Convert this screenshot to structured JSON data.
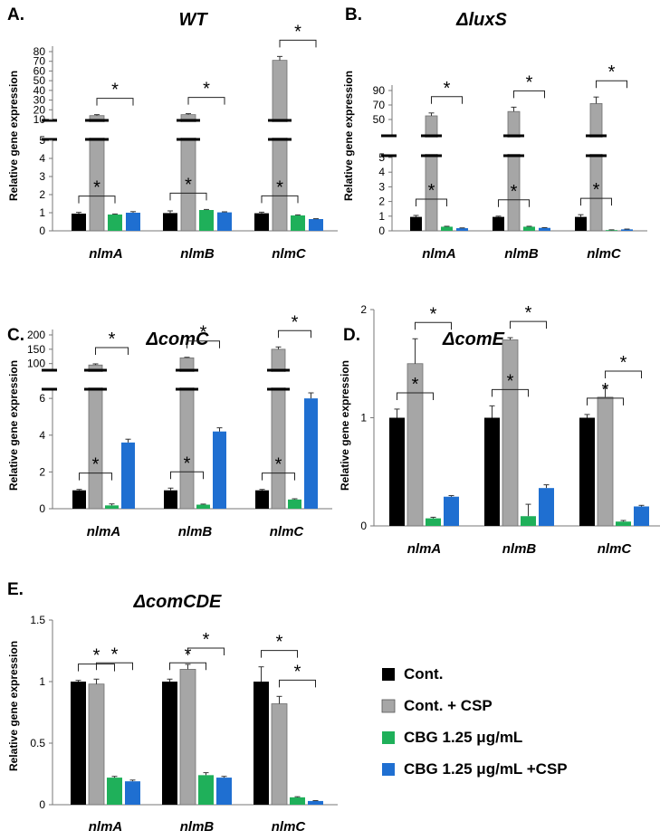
{
  "colors": {
    "cont": "#000000",
    "cont_csp": "#a6a6a6",
    "cbg": "#1fb05a",
    "cbg_csp": "#1f6fd1"
  },
  "legend": {
    "items": [
      {
        "label": "Cont.",
        "color": "#000000"
      },
      {
        "label": "Cont. + CSP",
        "color": "#a6a6a6"
      },
      {
        "label": "CBG 1.25 μg/mL",
        "color": "#1fb05a"
      },
      {
        "label": "CBG 1.25 μg/mL +CSP",
        "color": "#1f6fd1"
      }
    ]
  },
  "chart_data": [
    {
      "id": "A",
      "panel_label": "A.",
      "type": "bar",
      "title": "WT",
      "ylabel": "Relative gene expression",
      "broken_axis": true,
      "categories": [
        "nlmA",
        "nlmB",
        "nlmC"
      ],
      "series": [
        {
          "name": "Cont.",
          "values": [
            0.95,
            0.98,
            0.97
          ],
          "errors": [
            0.07,
            0.12,
            0.06
          ]
        },
        {
          "name": "Cont. + CSP",
          "values": [
            14,
            15,
            71
          ],
          "errors": [
            1.0,
            1.0,
            4.0
          ]
        },
        {
          "name": "CBG 1.25 μg/mL",
          "values": [
            0.9,
            1.15,
            0.85
          ],
          "errors": [
            0.03,
            0.03,
            0.03
          ]
        },
        {
          "name": "CBG 1.25 μg/mL +CSP",
          "values": [
            1.0,
            1.02,
            0.65
          ],
          "errors": [
            0.06,
            0.03,
            0.02
          ]
        }
      ],
      "lower_ticks": [
        "0",
        "1",
        "2",
        "3",
        "4",
        "5"
      ],
      "upper_ticks": [
        "10",
        "20",
        "30",
        "40",
        "50",
        "60",
        "70",
        "80"
      ],
      "significance": "*"
    },
    {
      "id": "B",
      "panel_label": "B.",
      "type": "bar",
      "title": "ΔluxS",
      "ylabel": "Relative gene expression",
      "broken_axis": true,
      "categories": [
        "nlmA",
        "nlmB",
        "nlmC"
      ],
      "series": [
        {
          "name": "Cont.",
          "values": [
            0.95,
            0.95,
            0.95
          ],
          "errors": [
            0.1,
            0.05,
            0.15
          ]
        },
        {
          "name": "Cont. + CSP",
          "values": [
            55,
            61,
            72
          ],
          "errors": [
            4,
            6,
            9
          ]
        },
        {
          "name": "CBG 1.25 μg/mL",
          "values": [
            0.28,
            0.28,
            0.05
          ],
          "errors": [
            0.03,
            0.03,
            0.02
          ]
        },
        {
          "name": "CBG 1.25 μg/mL +CSP",
          "values": [
            0.18,
            0.2,
            0.1
          ],
          "errors": [
            0.02,
            0.02,
            0.02
          ]
        }
      ],
      "lower_ticks": [
        "0",
        "1",
        "2",
        "3",
        "4",
        "5"
      ],
      "upper_ticks": [
        "50",
        "70",
        "90"
      ],
      "significance": "*"
    },
    {
      "id": "C",
      "panel_label": "C.",
      "type": "bar",
      "title": "ΔcomC",
      "ylabel": "Relative gene expression",
      "broken_axis": true,
      "categories": [
        "nlmA",
        "nlmB",
        "nlmC"
      ],
      "series": [
        {
          "name": "Cont.",
          "values": [
            1.0,
            1.0,
            1.0
          ],
          "errors": [
            0.05,
            0.12,
            0.05
          ]
        },
        {
          "name": "Cont. + CSP",
          "values": [
            95,
            120,
            150
          ],
          "errors": [
            4,
            2,
            8
          ]
        },
        {
          "name": "CBG 1.25 μg/mL",
          "values": [
            0.18,
            0.22,
            0.5
          ],
          "errors": [
            0.08,
            0.03,
            0.04
          ]
        },
        {
          "name": "CBG 1.25 μg/mL +CSP",
          "values": [
            3.6,
            4.2,
            6.0
          ],
          "errors": [
            0.18,
            0.2,
            0.3
          ]
        }
      ],
      "lower_ticks": [
        "0",
        "2",
        "4",
        "6"
      ],
      "upper_ticks": [
        "100",
        "150",
        "200"
      ],
      "significance": "*"
    },
    {
      "id": "D",
      "panel_label": "D.",
      "type": "bar",
      "title": "ΔcomE",
      "ylabel": "Relative gene expression",
      "broken_axis": false,
      "categories": [
        "nlmA",
        "nlmB",
        "nlmC"
      ],
      "series": [
        {
          "name": "Cont.",
          "values": [
            1.0,
            1.0,
            1.0
          ],
          "errors": [
            0.08,
            0.11,
            0.03
          ]
        },
        {
          "name": "Cont. + CSP",
          "values": [
            1.5,
            1.72,
            1.19
          ],
          "errors": [
            0.23,
            0.02,
            0.09
          ]
        },
        {
          "name": "CBG 1.25 μg/mL",
          "values": [
            0.07,
            0.09,
            0.04
          ],
          "errors": [
            0.01,
            0.11,
            0.01
          ]
        },
        {
          "name": "CBG 1.25 μg/mL +CSP",
          "values": [
            0.27,
            0.35,
            0.18
          ],
          "errors": [
            0.01,
            0.03,
            0.01
          ]
        }
      ],
      "ylim": [
        0,
        2
      ],
      "yticks": [
        "0",
        "1",
        "2"
      ],
      "significance": "*"
    },
    {
      "id": "E",
      "panel_label": "E.",
      "type": "bar",
      "title": "ΔcomCDE",
      "ylabel": "Relative gene expression",
      "broken_axis": false,
      "categories": [
        "nlmA",
        "nlmB",
        "nlmC"
      ],
      "series": [
        {
          "name": "Cont.",
          "values": [
            1.0,
            1.0,
            1.0
          ],
          "errors": [
            0.01,
            0.02,
            0.12
          ]
        },
        {
          "name": "Cont. + CSP",
          "values": [
            0.98,
            1.1,
            0.82
          ],
          "errors": [
            0.04,
            0.04,
            0.06
          ]
        },
        {
          "name": "CBG 1.25 μg/mL",
          "values": [
            0.22,
            0.24,
            0.06
          ],
          "errors": [
            0.01,
            0.02,
            0.005
          ]
        },
        {
          "name": "CBG 1.25 μg/mL +CSP",
          "values": [
            0.19,
            0.22,
            0.03
          ],
          "errors": [
            0.01,
            0.01,
            0.003
          ]
        }
      ],
      "ylim": [
        0,
        1.5
      ],
      "yticks": [
        "0",
        "0.5",
        "1",
        "1.5"
      ],
      "significance": "*"
    }
  ]
}
